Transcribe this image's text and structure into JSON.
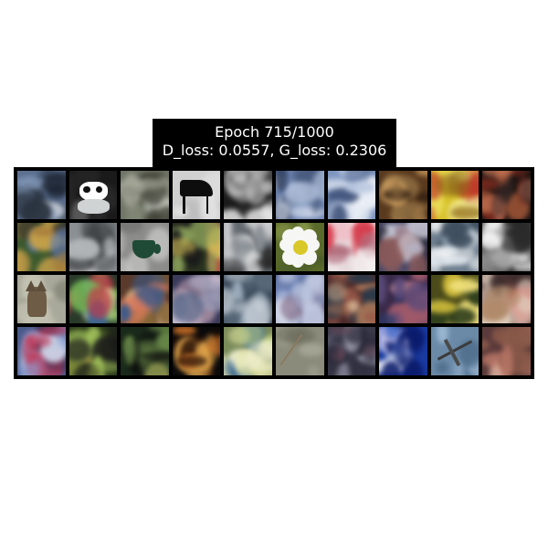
{
  "title": {
    "line1": "Epoch 715/1000",
    "line2": "D_loss: 0.0557, G_loss: 0.2306"
  },
  "grid": {
    "rows": 4,
    "cols": 10,
    "tiles": [
      {
        "kind": "noise",
        "colors": [
          "#5b6f8f",
          "#d9dee8",
          "#2a3340",
          "#8fa6c7",
          "#1a2230"
        ]
      },
      {
        "kind": "panda",
        "colors": [
          "#1b1b1b",
          "#777777",
          "#2b2b2b"
        ]
      },
      {
        "kind": "noise",
        "colors": [
          "#6f7566",
          "#c9ccc4",
          "#3d3d33",
          "#8d8f7d",
          "#aeb0a2"
        ]
      },
      {
        "kind": "piano",
        "colors": [
          "#cfcfcf",
          "#e6e6e6",
          "#b9b9b9"
        ]
      },
      {
        "kind": "noise",
        "colors": [
          "#1a1a1a",
          "#d8d8d8",
          "#4a4a4a",
          "#2a2a2a",
          "#e8e8e8"
        ]
      },
      {
        "kind": "noise",
        "colors": [
          "#6f86b3",
          "#dfe6f1",
          "#2c3b5a",
          "#a9b9d5",
          "#4b5d80"
        ]
      },
      {
        "kind": "noise",
        "colors": [
          "#7e95bf",
          "#eef2f8",
          "#5c6f96",
          "#bac8e0",
          "#3d4f76"
        ]
      },
      {
        "kind": "noise",
        "colors": [
          "#5a3a1e",
          "#b77a3f",
          "#2a1a10",
          "#8a6a40",
          "#d0a060"
        ]
      },
      {
        "kind": "noise",
        "colors": [
          "#d7c12a",
          "#f2e96b",
          "#c0392b",
          "#8f6a1b",
          "#f6f0a0"
        ]
      },
      {
        "kind": "noise",
        "colors": [
          "#1a1412",
          "#7a2a1e",
          "#cf7a5a",
          "#3b2b2a",
          "#a85a3a"
        ]
      },
      {
        "kind": "noise",
        "colors": [
          "#3c5a2f",
          "#a37a3a",
          "#5a7ab0",
          "#2a2a2a",
          "#c9a24a"
        ]
      },
      {
        "kind": "noise",
        "colors": [
          "#8a8f93",
          "#d9dcde",
          "#55595c",
          "#b2b6b8",
          "#3a3d40"
        ]
      },
      {
        "kind": "cup",
        "colors": [
          "#8a8a88",
          "#c7c7c5",
          "#6b6b69"
        ]
      },
      {
        "kind": "noise",
        "colors": [
          "#2a3320",
          "#8aa05a",
          "#c04a3a",
          "#1a1a1a",
          "#d7c05a"
        ]
      },
      {
        "kind": "noise",
        "colors": [
          "#646a70",
          "#e6e6e6",
          "#2a2a2a",
          "#b5b9bd",
          "#8a8f95"
        ]
      },
      {
        "kind": "flower",
        "colors": [
          "#6c7a3a",
          "#8a9a4a",
          "#4a5a2a"
        ]
      },
      {
        "kind": "noise",
        "colors": [
          "#e7dadd",
          "#d63a4a",
          "#f5f0f0",
          "#b06a7a",
          "#f0c0c8"
        ]
      },
      {
        "kind": "noise",
        "colors": [
          "#4a4a6a",
          "#b5b5c9",
          "#8a5a5a",
          "#2a2a3a",
          "#d9d9e6"
        ]
      },
      {
        "kind": "noise",
        "colors": [
          "#6f7f8f",
          "#e0e6ec",
          "#3b4b5b",
          "#a6b8c8",
          "#f2f4f6"
        ]
      },
      {
        "kind": "noise",
        "colors": [
          "#5a5a5a",
          "#e8e8e8",
          "#2a2a2a",
          "#9a9a9a",
          "#f5f5f5"
        ]
      },
      {
        "kind": "cat",
        "colors": [
          "#a8a89a",
          "#c7c6b6",
          "#8a8a7c"
        ]
      },
      {
        "kind": "noise",
        "colors": [
          "#2a3a2a",
          "#7ac05a",
          "#c03a4a",
          "#e0e0a0",
          "#3a6a9a"
        ]
      },
      {
        "kind": "noise",
        "colors": [
          "#5a3a2a",
          "#e07a5a",
          "#3a5a8a",
          "#f0d0a0",
          "#8a6a3a"
        ]
      },
      {
        "kind": "noise",
        "colors": [
          "#3a3a5a",
          "#9a9ab5",
          "#c0a0b0",
          "#5a6a8a",
          "#e0d0e0"
        ]
      },
      {
        "kind": "noise",
        "colors": [
          "#3a4a5a",
          "#a0b0c0",
          "#2a3a4a",
          "#d0d8e0",
          "#5a6a7a"
        ]
      },
      {
        "kind": "noise",
        "colors": [
          "#4a5a8a",
          "#e6ebf5",
          "#8aa0d0",
          "#6a4a6a",
          "#c0c8e0"
        ]
      },
      {
        "kind": "noise",
        "colors": [
          "#4a2a2a",
          "#b07a5a",
          "#2a3a4a",
          "#9a5a4a",
          "#d0b090"
        ]
      },
      {
        "kind": "noise",
        "colors": [
          "#3a2a4a",
          "#a05a6a",
          "#2a3a6a",
          "#c08a9a",
          "#5a4a7a"
        ]
      },
      {
        "kind": "noise",
        "colors": [
          "#4a4a1a",
          "#d6c03a",
          "#2a3a1a",
          "#f0e07a",
          "#8a8a3a"
        ]
      },
      {
        "kind": "noise",
        "colors": [
          "#5a3a3a",
          "#d03a3a",
          "#e0d0c0",
          "#3a2a2a",
          "#b08a6a"
        ]
      },
      {
        "kind": "noise",
        "colors": [
          "#4a5a8a",
          "#d0d8ec",
          "#2a2a4a",
          "#c03a5a",
          "#8aa0d0"
        ]
      },
      {
        "kind": "noise",
        "colors": [
          "#2a3a1a",
          "#a0c05a",
          "#c0a04a",
          "#1a1a1a",
          "#7a8a3a"
        ]
      },
      {
        "kind": "noise",
        "colors": [
          "#1a2a1a",
          "#6a8a4a",
          "#c0b05a",
          "#0d0d0d",
          "#3a5a2a"
        ]
      },
      {
        "kind": "noise",
        "colors": [
          "#0a0a0a",
          "#e07a2a",
          "#3a1a0a",
          "#f0b050",
          "#1a0a05"
        ]
      },
      {
        "kind": "noise",
        "colors": [
          "#7a8a5a",
          "#e0e0a0",
          "#3a6aa0",
          "#c0d080",
          "#f0f0d0"
        ]
      },
      {
        "kind": "stick",
        "colors": [
          "#8a8a7a",
          "#a6a696",
          "#6a6a5a"
        ]
      },
      {
        "kind": "noise",
        "colors": [
          "#3a3a4a",
          "#a0a0b5",
          "#6a4a5a",
          "#d0d0e0",
          "#2a2a3a"
        ]
      },
      {
        "kind": "noise",
        "colors": [
          "#1a3aa0",
          "#f5f8ff",
          "#3a6ad0",
          "#e6e0ff",
          "#0a1a6a"
        ]
      },
      {
        "kind": "plane",
        "colors": [
          "#6a8aa8",
          "#a0bcd6",
          "#4a6a88"
        ]
      },
      {
        "kind": "noise",
        "colors": [
          "#5a3a3a",
          "#c07a6a",
          "#3a2a2a",
          "#e0b0a0",
          "#8a5a4a"
        ]
      }
    ]
  }
}
